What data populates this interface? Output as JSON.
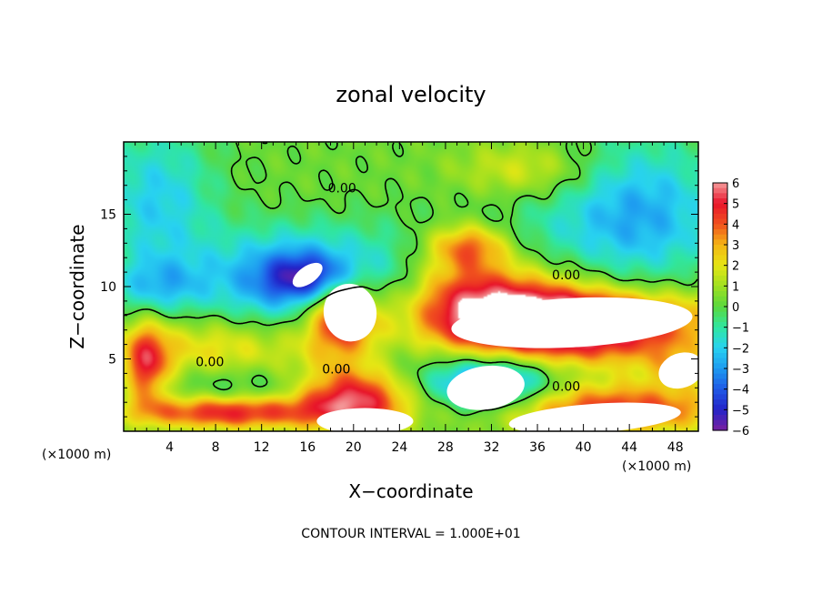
{
  "chart_data": {
    "type": "heatmap",
    "title": "zonal velocity",
    "xlabel": "X−coordinate",
    "ylabel": "Z−coordinate",
    "x_unit_left": "(×1000 m)",
    "x_unit_right": "(×1000 m)",
    "footer": "CONTOUR INTERVAL = 1.000E+01",
    "xlim": [
      0,
      50
    ],
    "ylim": [
      0,
      20
    ],
    "x_ticks": [
      4,
      8,
      12,
      16,
      20,
      24,
      28,
      32,
      36,
      40,
      44,
      48
    ],
    "y_ticks": [
      5,
      10,
      15
    ],
    "colorbar": {
      "ticks": [
        6,
        5,
        4,
        3,
        2,
        1,
        0,
        -1,
        -2,
        -3,
        -4,
        -5,
        -6
      ],
      "tick_labels": [
        "6",
        "5",
        "4",
        "3",
        "2",
        "1",
        "0",
        "−1",
        "−2",
        "−3",
        "−4",
        "−5",
        "−6"
      ],
      "range": [
        -6,
        6
      ],
      "colors": [
        "#7a1fa0",
        "#2323c8",
        "#1f5ae6",
        "#1e9bf0",
        "#28d2f0",
        "#30e6a0",
        "#5ad83c",
        "#a0e020",
        "#e6e614",
        "#f5b414",
        "#f0501e",
        "#e8142a",
        "#f49a9a"
      ]
    },
    "contour_labels": [
      {
        "x": 19,
        "y": 16.5,
        "text": "0.00"
      },
      {
        "x": 38.5,
        "y": 10.5,
        "text": "0.00"
      },
      {
        "x": 7.5,
        "y": 4.5,
        "text": "0.00"
      },
      {
        "x": 18.5,
        "y": 4.0,
        "text": "0.00"
      },
      {
        "x": 38.5,
        "y": 2.8,
        "text": "0.00"
      }
    ],
    "blobs": [
      {
        "cx": 25,
        "cy": 17,
        "rx": 30,
        "ry": 6,
        "v": 0.3
      },
      {
        "cx": 3,
        "cy": 16,
        "rx": 5,
        "ry": 5,
        "v": -2.2
      },
      {
        "cx": 45,
        "cy": 15,
        "rx": 7,
        "ry": 5,
        "v": -2.8
      },
      {
        "cx": 35,
        "cy": 14,
        "rx": 8,
        "ry": 4,
        "v": -0.8
      },
      {
        "cx": 30,
        "cy": 12.8,
        "rx": 3.5,
        "ry": 1.6,
        "v": 3.5
      },
      {
        "cx": 15,
        "cy": 10.5,
        "rx": 8,
        "ry": 3.4,
        "v": -3.5
      },
      {
        "cx": 16,
        "cy": 10.6,
        "rx": 3.6,
        "ry": 1.6,
        "v": -3.0
      },
      {
        "cx": 23,
        "cy": 8.5,
        "rx": 5,
        "ry": 5,
        "v": -1.2
      },
      {
        "cx": 19,
        "cy": 8,
        "rx": 3.3,
        "ry": 2.8,
        "v": 5.5
      },
      {
        "cx": 3,
        "cy": 10,
        "rx": 4,
        "ry": 2,
        "v": -2.0
      },
      {
        "cx": 38,
        "cy": 7.5,
        "rx": 13,
        "ry": 3.0,
        "v": 5.0
      },
      {
        "cx": 37,
        "cy": 7.6,
        "rx": 11,
        "ry": 2.3,
        "v": 3.5
      },
      {
        "cx": 30,
        "cy": 10,
        "rx": 6,
        "ry": 2.5,
        "v": 2.5
      },
      {
        "cx": 8,
        "cy": 5.5,
        "rx": 9,
        "ry": 2.5,
        "v": 2.5
      },
      {
        "cx": 2,
        "cy": 4.5,
        "rx": 2,
        "ry": 3,
        "v": 4.0
      },
      {
        "cx": 10,
        "cy": 3.2,
        "rx": 8,
        "ry": 1.8,
        "v": -1.5
      },
      {
        "cx": 20,
        "cy": 2.2,
        "rx": 5,
        "ry": 2.2,
        "v": 5.5
      },
      {
        "cx": 9,
        "cy": 1.3,
        "rx": 8,
        "ry": 1.2,
        "v": 5.0
      },
      {
        "cx": 32,
        "cy": 3.2,
        "rx": 6,
        "ry": 2.2,
        "v": -4.0
      },
      {
        "cx": 32,
        "cy": 3.2,
        "rx": 3.5,
        "ry": 1.3,
        "v": -1.0
      },
      {
        "cx": 42,
        "cy": 1.5,
        "rx": 12,
        "ry": 1.8,
        "v": 4.5
      },
      {
        "cx": 48,
        "cy": 4.5,
        "rx": 3,
        "ry": 1.5,
        "v": 1.5
      },
      {
        "cx": 44,
        "cy": 10,
        "rx": 6,
        "ry": 1.5,
        "v": -0.8
      },
      {
        "cx": 35,
        "cy": 18,
        "rx": 6,
        "ry": 2,
        "v": 1.8
      }
    ],
    "overflow_regions": [
      {
        "cx": 16.0,
        "cy": 10.8,
        "rx": 1.5,
        "ry": 0.6,
        "rot": -35,
        "label": "below -6"
      },
      {
        "cx": 19.7,
        "cy": 8.2,
        "rx": 2.3,
        "ry": 2.0,
        "rot": -10,
        "label": "above 6"
      },
      {
        "cx": 39.0,
        "cy": 7.5,
        "rx": 10.5,
        "ry": 1.7,
        "rot": -3,
        "label": "above 6"
      },
      {
        "cx": 31.5,
        "cy": 3.0,
        "rx": 3.4,
        "ry": 1.5,
        "rot": -8,
        "label": "above 6"
      },
      {
        "cx": 21.0,
        "cy": 0.7,
        "rx": 4.2,
        "ry": 0.9,
        "rot": 0,
        "label": "above 6"
      },
      {
        "cx": 41.0,
        "cy": 0.9,
        "rx": 7.5,
        "ry": 1.0,
        "rot": -4,
        "label": "above 6"
      },
      {
        "cx": 48.5,
        "cy": 4.2,
        "rx": 2.0,
        "ry": 1.2,
        "rot": -20,
        "label": "above 6"
      }
    ]
  }
}
